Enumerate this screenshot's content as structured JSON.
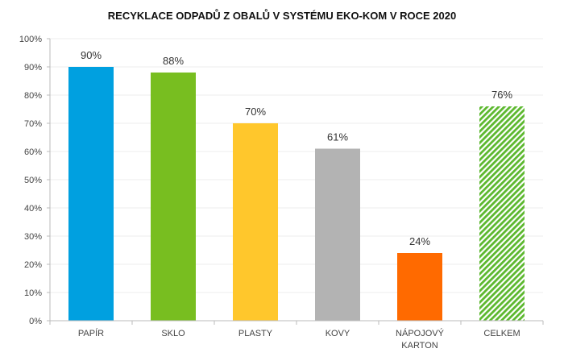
{
  "chart_data": {
    "type": "bar",
    "title": "RECYKLACE ODPADŮ Z OBALŮ V SYSTÉMU EKO-KOM V ROCE 2020",
    "categories": [
      [
        "PAPÍR"
      ],
      [
        "SKLO"
      ],
      [
        "PLASTY"
      ],
      [
        "KOVY"
      ],
      [
        "NÁPOJOVÝ",
        "KARTON"
      ],
      [
        "CELKEM"
      ]
    ],
    "values": [
      90,
      88,
      70,
      61,
      24,
      76
    ],
    "data_labels": [
      "90%",
      "88%",
      "70%",
      "61%",
      "24%",
      "76%"
    ],
    "colors": [
      "#00a0e0",
      "#78be20",
      "#ffc72c",
      "#b3b3b3",
      "#ff6a00",
      "#5cb82e"
    ],
    "patterned": [
      false,
      false,
      false,
      false,
      false,
      true
    ],
    "ylim": [
      0,
      100
    ],
    "yticks": [
      0,
      10,
      20,
      30,
      40,
      50,
      60,
      70,
      80,
      90,
      100
    ],
    "ytick_labels": [
      "0%",
      "10%",
      "20%",
      "30%",
      "40%",
      "50%",
      "60%",
      "70%",
      "80%",
      "90%",
      "100%"
    ],
    "xlabel": "",
    "ylabel": "",
    "grid": true,
    "legend": "none"
  }
}
